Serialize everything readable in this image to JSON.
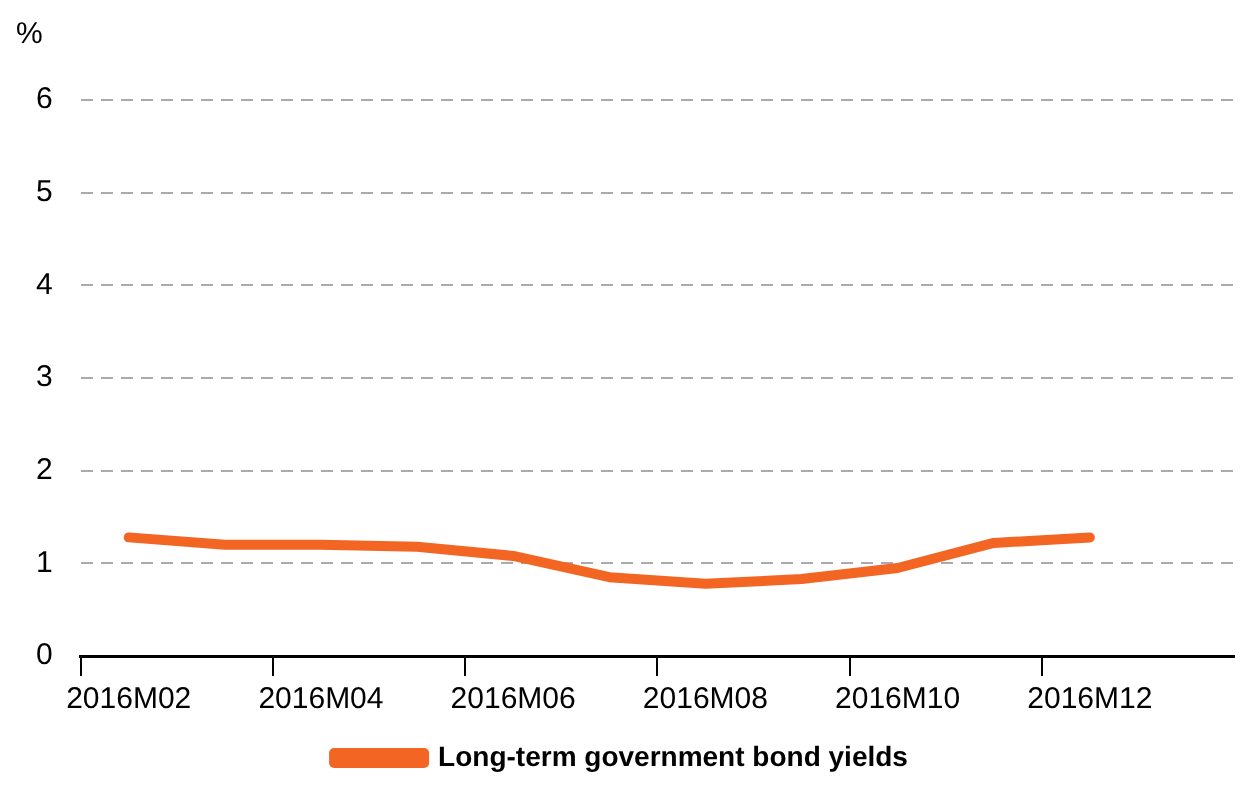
{
  "chart_data": {
    "type": "line",
    "ylabel": "%",
    "categories": [
      "2016M02",
      null,
      "2016M04",
      null,
      "2016M06",
      null,
      "2016M08",
      null,
      "2016M10",
      null,
      "2016M12",
      null
    ],
    "series": [
      {
        "name": "Long-term government bond yields",
        "color": "#f26522",
        "values": [
          1.28,
          1.2,
          1.2,
          1.18,
          1.08,
          0.85,
          0.78,
          0.83,
          0.95,
          1.22,
          1.28,
          null
        ]
      }
    ],
    "ylim": [
      0,
      6
    ],
    "yticks": [
      0,
      1,
      2,
      3,
      4,
      5,
      6
    ],
    "grid": "y",
    "legend": "bottom",
    "marker": "none",
    "line_style": "solid"
  }
}
